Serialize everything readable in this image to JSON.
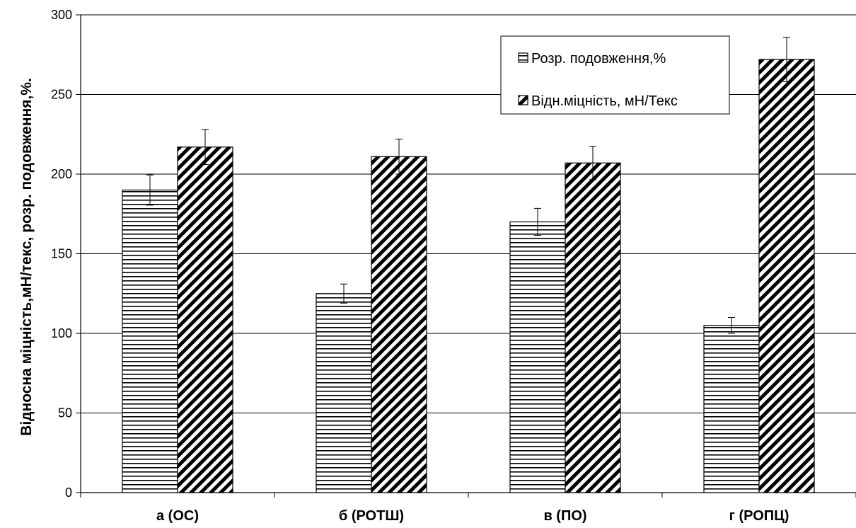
{
  "chart_data": {
    "type": "bar",
    "title": "",
    "xlabel": "",
    "ylabel": "Відносна міцність,мН/текс, розр. подовження,%.",
    "ylim": [
      0,
      300
    ],
    "yticks": [
      0,
      50,
      100,
      150,
      200,
      250,
      300
    ],
    "grid": true,
    "legend_position": "top-right",
    "categories": [
      "а (ОС)",
      "б (РОТШ)",
      "в (ПО)",
      "г (РОПЦ)"
    ],
    "series": [
      {
        "name": "Розр. подовження,%",
        "pattern": "horizontal-lines",
        "values": [
          190,
          125,
          170,
          105
        ],
        "error": [
          9.5,
          6,
          8.5,
          5
        ]
      },
      {
        "name": "Відн.міцність, мН/Текс",
        "pattern": "diagonal-lines",
        "values": [
          217,
          211,
          207,
          272
        ],
        "error": [
          11,
          11,
          10.5,
          14
        ]
      }
    ]
  }
}
